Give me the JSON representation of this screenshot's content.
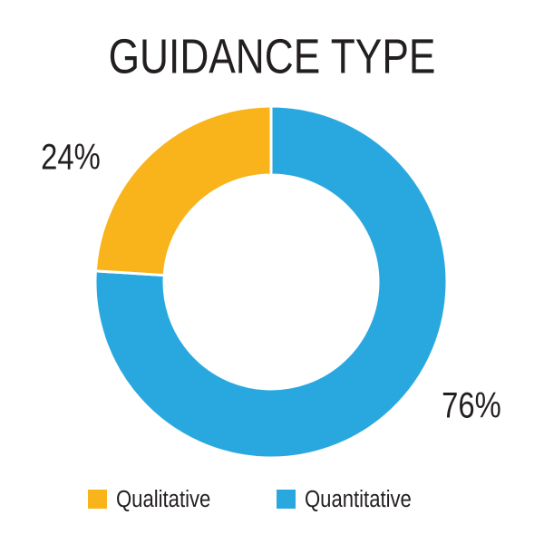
{
  "chart_data": {
    "type": "pie",
    "title": "GUIDANCE TYPE",
    "categories": [
      "Qualitative",
      "Quantitative"
    ],
    "values": [
      24,
      76
    ],
    "value_labels": [
      "24%",
      "76%"
    ],
    "colors": [
      "#f9b31b",
      "#29a8e0"
    ],
    "legend": "bottom"
  }
}
